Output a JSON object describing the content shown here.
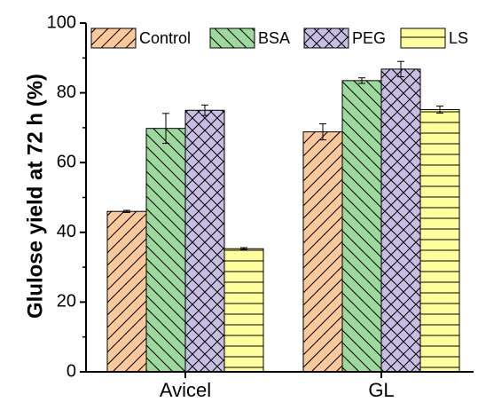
{
  "chart_data": {
    "type": "bar",
    "categories": [
      "Avicel",
      "GL"
    ],
    "ylabel": "Glulose yield at 72 h (%)",
    "xlabel": "",
    "ylim": [
      0,
      100
    ],
    "yticks": [
      "0",
      "20",
      "40",
      "60",
      "80",
      "100"
    ],
    "legend_position": "top",
    "series": [
      {
        "name": "Control",
        "values": [
          46.0,
          68.8
        ],
        "errors": [
          0.3,
          2.3
        ],
        "color": "#FDC89A",
        "pattern": "diagonal-up"
      },
      {
        "name": "BSA",
        "values": [
          69.8,
          83.5
        ],
        "errors": [
          4.3,
          0.8
        ],
        "color": "#9DD99D",
        "pattern": "diagonal-down"
      },
      {
        "name": "PEG",
        "values": [
          75.0,
          86.8
        ],
        "errors": [
          1.5,
          2.2
        ],
        "color": "#C8BDE3",
        "pattern": "crosshatch"
      },
      {
        "name": "LS",
        "values": [
          35.3,
          75.2
        ],
        "errors": [
          0.3,
          1.0
        ],
        "color": "#FFFFA0",
        "pattern": "horizontal"
      }
    ]
  }
}
